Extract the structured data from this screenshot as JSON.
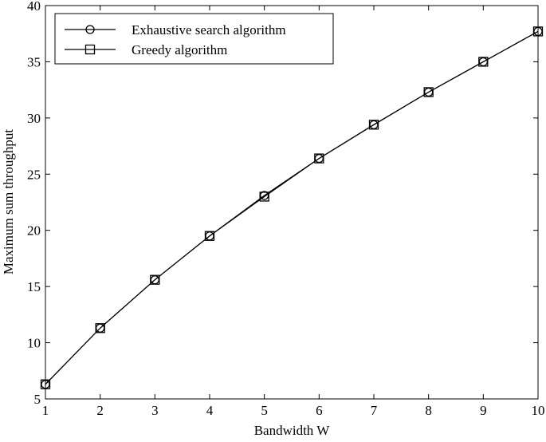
{
  "chart_data": {
    "type": "line",
    "title": "",
    "xlabel": "Bandwidth W",
    "ylabel": "Maximum sum throughput",
    "xlim": [
      1,
      10
    ],
    "ylim": [
      5,
      40
    ],
    "x": [
      1,
      2,
      3,
      4,
      5,
      6,
      7,
      8,
      9,
      10
    ],
    "x_ticks": [
      1,
      2,
      3,
      4,
      5,
      6,
      7,
      8,
      9,
      10
    ],
    "y_ticks": [
      5,
      10,
      15,
      20,
      25,
      30,
      35,
      40
    ],
    "grid": false,
    "legend_position": "top-left",
    "series": [
      {
        "name": "Exhaustive search algorithm",
        "marker": "circle",
        "color": "#000000",
        "values": [
          6.3,
          11.3,
          15.6,
          19.5,
          23.1,
          26.4,
          29.4,
          32.3,
          35.0,
          37.7
        ]
      },
      {
        "name": "Greedy algorithm",
        "marker": "square",
        "color": "#000000",
        "values": [
          6.3,
          11.3,
          15.6,
          19.5,
          23.0,
          26.4,
          29.4,
          32.3,
          35.0,
          37.7
        ]
      }
    ]
  }
}
